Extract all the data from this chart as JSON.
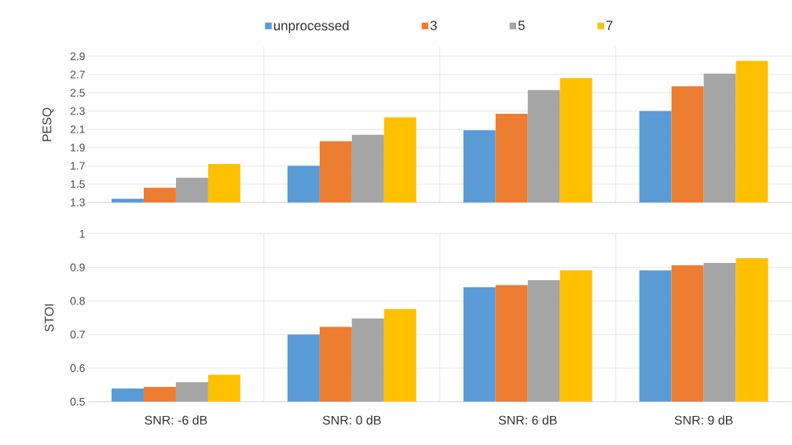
{
  "chart_data": [
    {
      "type": "bar",
      "ylabel": "PESQ",
      "categories": [
        null,
        null,
        null,
        null
      ],
      "series": [
        {
          "name": "unprocessed",
          "color": "#5b9bd5",
          "values": [
            1.34,
            1.7,
            2.09,
            2.3
          ]
        },
        {
          "name": "3",
          "color": "#ed7d31",
          "values": [
            1.46,
            1.97,
            2.27,
            2.57
          ]
        },
        {
          "name": "5",
          "color": "#a5a5a5",
          "values": [
            1.57,
            2.04,
            2.53,
            2.71
          ]
        },
        {
          "name": "7",
          "color": "#ffc000",
          "values": [
            1.72,
            2.23,
            2.66,
            2.85
          ]
        }
      ],
      "ylim": [
        1.3,
        3.0
      ],
      "yticks": [
        1.3,
        1.5,
        1.7,
        1.9,
        2.1,
        2.3,
        2.5,
        2.7,
        2.9
      ],
      "grid": true,
      "legend": "top",
      "tick_labels": "y"
    },
    {
      "type": "bar",
      "ylabel": "STOI",
      "categories": [
        "SNR: -6 dB",
        "SNR: 0 dB",
        "SNR: 6 dB",
        "SNR: 9 dB"
      ],
      "series": [
        {
          "color": "#5b9bd5",
          "values": [
            0.539,
            0.7,
            0.841,
            0.891
          ]
        },
        {
          "color": "#ed7d31",
          "values": [
            0.544,
            0.723,
            0.847,
            0.906
          ]
        },
        {
          "color": "#a5a5a5",
          "values": [
            0.558,
            0.748,
            0.862,
            0.913
          ]
        },
        {
          "color": "#ffc000",
          "values": [
            0.58,
            0.776,
            0.891,
            0.927
          ]
        }
      ],
      "ylim": [
        0.5,
        1.0
      ],
      "yticks": [
        0.5,
        0.6,
        0.7,
        0.8,
        0.9,
        1
      ],
      "grid": true,
      "legend": false
    }
  ]
}
